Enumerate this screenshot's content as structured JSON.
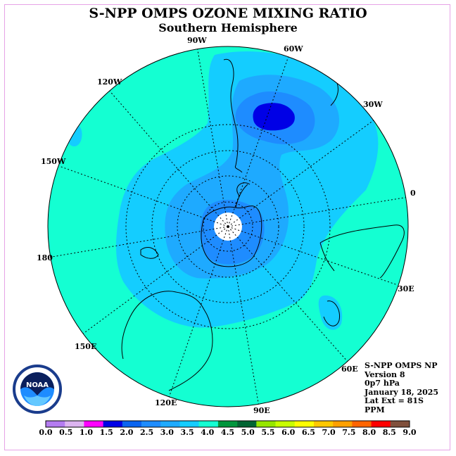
{
  "title": "S-NPP OMPS OZONE MIXING RATIO",
  "subtitle": "Southern Hemisphere",
  "longitude_labels": [
    {
      "text": "90W"
    },
    {
      "text": "60W"
    },
    {
      "text": "30W"
    },
    {
      "text": "0"
    },
    {
      "text": "30E"
    },
    {
      "text": "60E"
    },
    {
      "text": "90E"
    },
    {
      "text": "120E"
    },
    {
      "text": "150E"
    },
    {
      "text": "180"
    },
    {
      "text": "150W"
    },
    {
      "text": "120W"
    }
  ],
  "info": {
    "line1": "S-NPP OMPS NP",
    "line2": "Version 8",
    "line3": "0p7 hPa",
    "line4": "January 18, 2025",
    "line5": "Lat Ext = 81S",
    "line6": "PPM"
  },
  "logo_text": "NOAA",
  "colorbar": {
    "ticks": [
      "0.0",
      "0.5",
      "1.0",
      "1.5",
      "2.0",
      "2.5",
      "3.0",
      "3.5",
      "4.0",
      "4.5",
      "5.0",
      "5.5",
      "6.0",
      "6.5",
      "7.0",
      "7.5",
      "8.0",
      "8.5",
      "9.0"
    ],
    "colors": [
      "#b47cf0",
      "#dcb4f0",
      "#ff00ff",
      "#0000e6",
      "#0a64f0",
      "#1e8cff",
      "#1eaaff",
      "#14cdff",
      "#14ffd2",
      "#00963c",
      "#006432",
      "#96e600",
      "#c8ff00",
      "#ffff00",
      "#ffc800",
      "#ffa000",
      "#ff6400",
      "#ff0000",
      "#80503c"
    ]
  },
  "colors": {
    "background_field": "#14ffd2",
    "level_3_0": "#14cdff",
    "level_2_5": "#1eaaff",
    "level_2_0": "#1e8cff",
    "level_1_5": "#0000e6",
    "pole_hole": "#ffffff"
  }
}
